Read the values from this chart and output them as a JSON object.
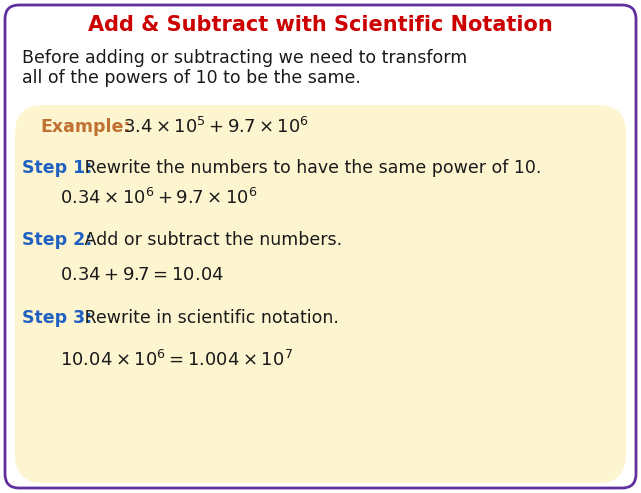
{
  "title": "Add & Subtract with Scientific Notation",
  "title_color": "#cc0000",
  "title_fontsize": 15,
  "border_color": "#6030a0",
  "bg_color": "#ffffff",
  "box_color": "#fdf5d0",
  "intro_line1": "Before adding or subtracting we need to transform",
  "intro_line2": "all of the powers of 10 to be the same.",
  "intro_color": "#1a1a1a",
  "intro_fontsize": 12.5,
  "example_label": "Example:",
  "example_label_color": "#c07030",
  "step1_label": "Step 1:",
  "step1_label_color": "#2060c0",
  "step1_text": " Rewrite the numbers to have the same power of 10.",
  "step2_label": "Step 2:",
  "step2_label_color": "#2060c0",
  "step2_text": " Add or subtract the numbers.",
  "step3_label": "Step 3:",
  "step3_label_color": "#2060c0",
  "step3_text": " Rewrite in scientific notation.",
  "text_color": "#1a1a1a",
  "body_fontsize": 12.5
}
